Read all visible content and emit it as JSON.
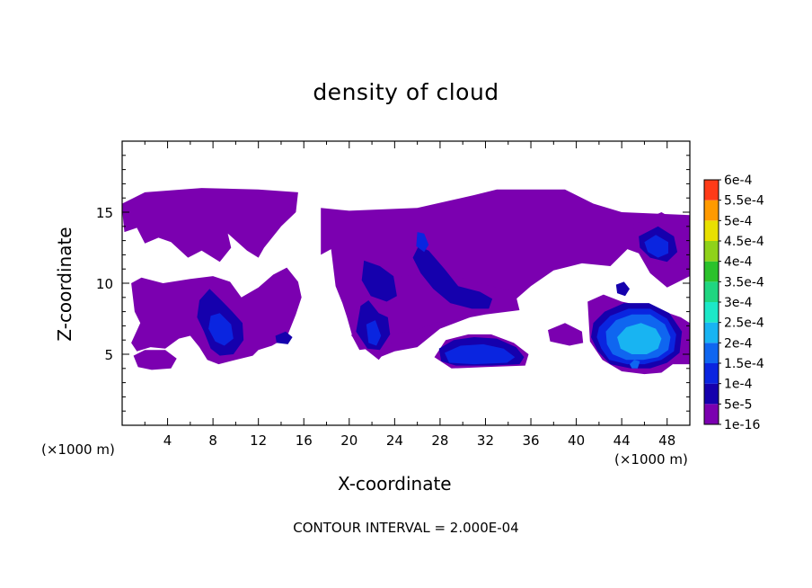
{
  "chart_data": {
    "type": "heatmap",
    "title": "density of cloud",
    "xlabel": "X-coordinate",
    "ylabel": "Z-coordinate",
    "x_unit_label": "(×1000 m)",
    "x_unit_label_right": "(×1000 m)",
    "xlim": [
      0,
      50
    ],
    "ylim": [
      0,
      20
    ],
    "xticks": [
      4,
      8,
      12,
      16,
      20,
      24,
      28,
      32,
      36,
      40,
      44,
      48
    ],
    "yticks": [
      5,
      10,
      15
    ],
    "colorbar": {
      "labels": [
        "1e-16",
        "5e-5",
        "1e-4",
        "1.5e-4",
        "2e-4",
        "2.5e-4",
        "3e-4",
        "3.5e-4",
        "4e-4",
        "4.5e-4",
        "5e-4",
        "5.5e-4",
        "6e-4"
      ],
      "colors": [
        "#7b00b0",
        "#1500ad",
        "#0a25e0",
        "#0f66f0",
        "#18b4f2",
        "#1ce8c8",
        "#1fd680",
        "#2bc22b",
        "#8fd21a",
        "#e8e000",
        "#ff9a00",
        "#ff3b18",
        "#f0b4b8"
      ]
    },
    "footer": "CONTOUR INTERVAL = 2.000E-04",
    "regions": [
      {
        "level": 0,
        "points": [
          [
            0,
            15.2
          ],
          [
            0,
            15.6
          ],
          [
            2,
            16.4
          ],
          [
            7,
            16.7
          ],
          [
            12,
            16.6
          ],
          [
            15.5,
            16.4
          ],
          [
            15.3,
            15
          ],
          [
            14,
            14
          ],
          [
            12.5,
            12.5
          ],
          [
            12,
            11.8
          ],
          [
            11,
            12.3
          ],
          [
            9.3,
            13.5
          ],
          [
            9.6,
            12.5
          ],
          [
            8.6,
            11.5
          ],
          [
            7,
            12.3
          ],
          [
            5.8,
            11.8
          ],
          [
            4.3,
            12.9
          ],
          [
            3.2,
            13.2
          ],
          [
            2,
            12.8
          ],
          [
            1.3,
            13.9
          ],
          [
            0.2,
            13.6
          ]
        ]
      },
      {
        "level": 0,
        "points": [
          [
            17.5,
            15.3
          ],
          [
            20,
            15.1
          ],
          [
            26,
            15.3
          ],
          [
            31,
            16.2
          ],
          [
            33,
            16.6
          ],
          [
            39,
            16.6
          ],
          [
            41.5,
            15.6
          ],
          [
            44,
            15
          ],
          [
            50,
            14.8
          ],
          [
            50,
            10.5
          ],
          [
            48,
            9.7
          ],
          [
            46.5,
            10.7
          ],
          [
            45.5,
            12.1
          ],
          [
            44.5,
            12.4
          ],
          [
            43,
            11.2
          ],
          [
            40.5,
            11.4
          ],
          [
            38,
            10.9
          ],
          [
            36,
            9.8
          ],
          [
            34,
            8.4
          ],
          [
            31,
            7.7
          ],
          [
            28,
            6.8
          ],
          [
            26,
            5.5
          ],
          [
            24,
            5.2
          ],
          [
            22.7,
            4.8
          ],
          [
            21.8,
            5.4
          ],
          [
            20.9,
            5.3
          ],
          [
            20.3,
            6.2
          ],
          [
            19.8,
            7.6
          ],
          [
            19.4,
            8.6
          ],
          [
            18.8,
            9.8
          ],
          [
            18.4,
            12.4
          ],
          [
            17.5,
            12
          ]
        ]
      },
      {
        "level": 0,
        "points": [
          [
            0.8,
            10
          ],
          [
            1.7,
            10.4
          ],
          [
            3.6,
            10
          ],
          [
            6,
            10.3
          ],
          [
            8,
            10.5
          ],
          [
            9.5,
            10.1
          ],
          [
            10.5,
            9
          ],
          [
            12,
            9.7
          ],
          [
            13.3,
            10.6
          ],
          [
            14.5,
            11.1
          ],
          [
            15.5,
            10.1
          ],
          [
            15.8,
            9
          ],
          [
            15.3,
            7.8
          ],
          [
            14.5,
            6.2
          ],
          [
            13.2,
            5.6
          ],
          [
            12,
            5.3
          ],
          [
            11.5,
            4.9
          ],
          [
            10,
            4.6
          ],
          [
            8.5,
            4.3
          ],
          [
            7.5,
            4.6
          ],
          [
            6.8,
            5.5
          ],
          [
            6,
            6.3
          ],
          [
            5,
            6.1
          ],
          [
            3.8,
            5.4
          ],
          [
            2.5,
            5.5
          ],
          [
            1.3,
            5.2
          ],
          [
            0.8,
            5.8
          ],
          [
            1.6,
            7.2
          ],
          [
            1.1,
            8
          ]
        ]
      },
      {
        "level": 0,
        "points": [
          [
            1,
            4.9
          ],
          [
            2,
            5.3
          ],
          [
            3.8,
            5.3
          ],
          [
            4.8,
            4.7
          ],
          [
            4.3,
            4
          ],
          [
            2.6,
            3.9
          ],
          [
            1.4,
            4.1
          ]
        ]
      },
      {
        "level": 0,
        "points": [
          [
            20.7,
            8.6
          ],
          [
            24,
            10.4
          ],
          [
            28,
            10.8
          ],
          [
            32,
            9.9
          ],
          [
            34.6,
            9.4
          ],
          [
            35,
            8.1
          ],
          [
            32,
            7.8
          ],
          [
            30,
            7.5
          ],
          [
            27.5,
            7.2
          ],
          [
            25.5,
            6.6
          ],
          [
            24.2,
            6.5
          ],
          [
            23.5,
            5.5
          ],
          [
            22.6,
            4.6
          ],
          [
            21.5,
            5.3
          ],
          [
            20.2,
            6.3
          ]
        ]
      },
      {
        "level": 0,
        "points": [
          [
            41,
            8.7
          ],
          [
            42.4,
            9.2
          ],
          [
            44,
            8.7
          ],
          [
            47,
            8.2
          ],
          [
            49.2,
            7.6
          ],
          [
            50,
            7.2
          ],
          [
            50,
            4.3
          ],
          [
            48.5,
            4.3
          ],
          [
            47.5,
            3.7
          ],
          [
            46,
            3.6
          ],
          [
            44,
            3.8
          ],
          [
            42.3,
            4.6
          ],
          [
            41.2,
            5.9
          ]
        ]
      },
      {
        "level": 0,
        "points": [
          [
            27.5,
            4.8
          ],
          [
            28.5,
            6
          ],
          [
            30.5,
            6.4
          ],
          [
            32.5,
            6.4
          ],
          [
            34.5,
            5.8
          ],
          [
            35.8,
            5
          ],
          [
            35.5,
            4.2
          ],
          [
            32,
            4.1
          ],
          [
            29,
            4
          ]
        ]
      },
      {
        "level": 0,
        "points": [
          [
            37.5,
            6.7
          ],
          [
            39,
            7.2
          ],
          [
            40.5,
            6.6
          ],
          [
            40.6,
            5.8
          ],
          [
            39.4,
            5.6
          ],
          [
            37.7,
            5.9
          ]
        ]
      },
      {
        "level": 0,
        "points": [
          [
            45,
            14.1
          ],
          [
            47.5,
            15
          ],
          [
            49.7,
            14
          ],
          [
            49.8,
            11.8
          ],
          [
            48,
            11
          ],
          [
            46.5,
            11.5
          ],
          [
            45.3,
            12.6
          ]
        ]
      },
      {
        "level": 1,
        "points": [
          [
            6.8,
            8.8
          ],
          [
            7.7,
            9.6
          ],
          [
            8.6,
            8.9
          ],
          [
            9.7,
            8
          ],
          [
            10.6,
            7.2
          ],
          [
            10.7,
            6
          ],
          [
            9.8,
            5
          ],
          [
            8.6,
            4.9
          ],
          [
            7.8,
            5.4
          ],
          [
            7.2,
            6.6
          ],
          [
            6.6,
            7.6
          ]
        ]
      },
      {
        "level": 1,
        "points": [
          [
            13.5,
            6.3
          ],
          [
            14.4,
            6.6
          ],
          [
            15,
            6.2
          ],
          [
            14.6,
            5.7
          ],
          [
            13.6,
            5.8
          ]
        ]
      },
      {
        "level": 1,
        "points": [
          [
            21,
            8.4
          ],
          [
            21.7,
            8.8
          ],
          [
            22.6,
            7.9
          ],
          [
            23.4,
            7.6
          ],
          [
            23.6,
            6.4
          ],
          [
            22.7,
            5.3
          ],
          [
            21.6,
            5.4
          ],
          [
            20.6,
            6.6
          ]
        ]
      },
      {
        "level": 1,
        "points": [
          [
            21.3,
            11.6
          ],
          [
            22.7,
            11.2
          ],
          [
            23.9,
            10.5
          ],
          [
            24.2,
            9.1
          ],
          [
            23.3,
            8.7
          ],
          [
            21.9,
            9.1
          ],
          [
            21.1,
            10.2
          ]
        ]
      },
      {
        "level": 1,
        "points": [
          [
            26.1,
            12.6
          ],
          [
            27,
            12.3
          ],
          [
            28.4,
            11
          ],
          [
            29.6,
            9.8
          ],
          [
            31.5,
            9.4
          ],
          [
            32.6,
            8.9
          ],
          [
            32.3,
            8.2
          ],
          [
            30.8,
            8.2
          ],
          [
            28.9,
            8.6
          ],
          [
            27.4,
            9.6
          ],
          [
            26.3,
            10.7
          ],
          [
            25.6,
            11.8
          ]
        ]
      },
      {
        "level": 1,
        "points": [
          [
            27.9,
            5.4
          ],
          [
            29.2,
            6
          ],
          [
            31,
            6.2
          ],
          [
            33,
            6.1
          ],
          [
            34.7,
            5.5
          ],
          [
            35.4,
            4.8
          ],
          [
            35,
            4.3
          ],
          [
            32.5,
            4.2
          ],
          [
            29.4,
            4.2
          ],
          [
            28.1,
            4.5
          ]
        ]
      },
      {
        "level": 1,
        "points": [
          [
            45.5,
            13.3
          ],
          [
            47.2,
            14
          ],
          [
            48.6,
            13.3
          ],
          [
            48.9,
            12.2
          ],
          [
            48,
            11.5
          ],
          [
            46.5,
            11.8
          ],
          [
            45.6,
            12.5
          ]
        ]
      },
      {
        "level": 1,
        "points": [
          [
            43.5,
            9.9
          ],
          [
            44.2,
            10.1
          ],
          [
            44.7,
            9.6
          ],
          [
            44.3,
            9.1
          ],
          [
            43.6,
            9.3
          ]
        ]
      },
      {
        "level": 1,
        "points": [
          [
            41.5,
            7.2
          ],
          [
            42.5,
            8
          ],
          [
            44.2,
            8.6
          ],
          [
            46.4,
            8.6
          ],
          [
            48.2,
            7.9
          ],
          [
            49.3,
            6.6
          ],
          [
            49.1,
            5.1
          ],
          [
            48,
            4.4
          ],
          [
            46.5,
            4
          ],
          [
            44.8,
            4
          ],
          [
            43,
            4.3
          ],
          [
            41.9,
            5.2
          ],
          [
            41.3,
            6.2
          ]
        ]
      },
      {
        "level": 2,
        "points": [
          [
            7.8,
            7.7
          ],
          [
            8.6,
            7.9
          ],
          [
            9.6,
            7.1
          ],
          [
            9.8,
            6.1
          ],
          [
            9,
            5.6
          ],
          [
            8.2,
            5.9
          ],
          [
            7.6,
            6.8
          ]
        ]
      },
      {
        "level": 2,
        "points": [
          [
            21.5,
            7.1
          ],
          [
            22.3,
            7.4
          ],
          [
            22.8,
            6.3
          ],
          [
            22.4,
            5.6
          ],
          [
            21.7,
            5.8
          ]
        ]
      },
      {
        "level": 2,
        "points": [
          [
            26,
            13.6
          ],
          [
            26.6,
            13.5
          ],
          [
            27,
            12.7
          ],
          [
            26.6,
            12.2
          ],
          [
            25.9,
            12.6
          ]
        ]
      },
      {
        "level": 2,
        "points": [
          [
            28.4,
            5.1
          ],
          [
            29.8,
            5.6
          ],
          [
            31.8,
            5.7
          ],
          [
            33.6,
            5.4
          ],
          [
            34.6,
            4.8
          ],
          [
            33.9,
            4.4
          ],
          [
            31,
            4.3
          ],
          [
            28.8,
            4.4
          ]
        ]
      },
      {
        "level": 2,
        "points": [
          [
            46,
            12.9
          ],
          [
            47,
            13.4
          ],
          [
            48.1,
            12.9
          ],
          [
            48.1,
            12.1
          ],
          [
            47.2,
            11.8
          ],
          [
            46.3,
            12.2
          ]
        ]
      },
      {
        "level": 2,
        "points": [
          [
            42,
            6.9
          ],
          [
            43,
            7.7
          ],
          [
            44.6,
            8.2
          ],
          [
            46.5,
            8.2
          ],
          [
            48,
            7.5
          ],
          [
            48.8,
            6.4
          ],
          [
            48.6,
            5.2
          ],
          [
            47.5,
            4.6
          ],
          [
            46,
            4.3
          ],
          [
            44.5,
            4.3
          ],
          [
            42.9,
            4.6
          ],
          [
            42.2,
            5.4
          ],
          [
            41.8,
            6.2
          ]
        ]
      },
      {
        "level": 3,
        "points": [
          [
            42.6,
            6.6
          ],
          [
            43.5,
            7.4
          ],
          [
            44.9,
            7.8
          ],
          [
            46.5,
            7.8
          ],
          [
            47.8,
            7.1
          ],
          [
            48.3,
            6.2
          ],
          [
            48.1,
            5.3
          ],
          [
            47.2,
            4.8
          ],
          [
            45.9,
            4.6
          ],
          [
            44.4,
            4.6
          ],
          [
            43.2,
            5
          ],
          [
            42.7,
            5.7
          ]
        ]
      },
      {
        "level": 4,
        "points": [
          [
            43.6,
            6.2
          ],
          [
            44.4,
            6.9
          ],
          [
            45.7,
            7.2
          ],
          [
            47,
            6.8
          ],
          [
            47.5,
            6.1
          ],
          [
            47.2,
            5.4
          ],
          [
            46.2,
            5
          ],
          [
            44.9,
            5
          ],
          [
            43.9,
            5.4
          ]
        ]
      },
      {
        "level": 3,
        "points": [
          [
            44.7,
            4.3
          ],
          [
            45.1,
            4.6
          ],
          [
            45.6,
            4.5
          ],
          [
            45.4,
            4
          ],
          [
            44.9,
            4
          ]
        ]
      }
    ]
  }
}
